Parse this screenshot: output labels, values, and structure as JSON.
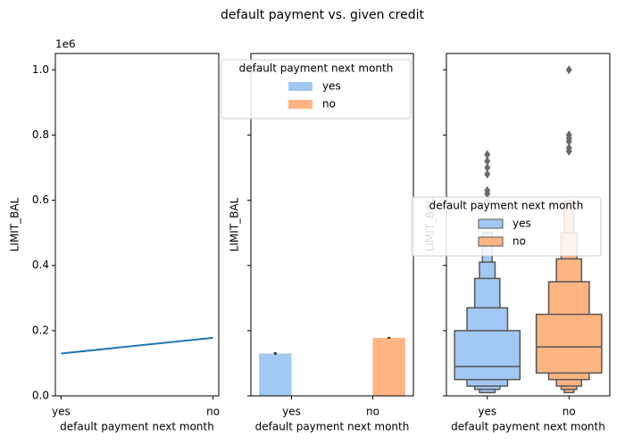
{
  "title": "default payment vs. given credit",
  "chart_data": [
    {
      "type": "line",
      "categories": [
        "yes",
        "no"
      ],
      "values": [
        130000,
        178000
      ],
      "color": "#1f77b4",
      "xlabel": "default payment next month",
      "ylabel": "LIMIT_BAL",
      "y_offset_label": "1e6",
      "ylim": [
        0,
        1050000
      ],
      "yticks": [
        {
          "value": 0,
          "label": "0.0"
        },
        {
          "value": 200000,
          "label": "0.2"
        },
        {
          "value": 400000,
          "label": "0.4"
        },
        {
          "value": 600000,
          "label": "0.6"
        },
        {
          "value": 800000,
          "label": "0.8"
        },
        {
          "value": 1000000,
          "label": "1.0"
        }
      ]
    },
    {
      "type": "bar",
      "categories": [
        "yes",
        "no"
      ],
      "xlabel": "default payment next month",
      "ylabel": "LIMIT_BAL",
      "ylim": [
        0,
        1050000
      ],
      "legend": "upper center",
      "legend_title": "default payment next month",
      "series": [
        {
          "name": "yes",
          "color": "#a1c9f4",
          "values": [
            130000,
            null
          ],
          "errors": [
            4000,
            null
          ]
        },
        {
          "name": "no",
          "color": "#ffb482",
          "values": [
            null,
            178000
          ],
          "errors": [
            null,
            3000
          ]
        }
      ]
    },
    {
      "type": "boxen",
      "categories": [
        "yes",
        "no"
      ],
      "xlabel": "default payment next month",
      "ylabel": "LIMIT_BAL",
      "ylim": [
        0,
        1050000
      ],
      "legend": "center right",
      "legend_title": "default payment next month",
      "series": [
        {
          "name": "yes",
          "color": "#a1c9f4",
          "median": 90000,
          "levels": [
            [
              50000,
              200000
            ],
            [
              30000,
              270000
            ],
            [
              20000,
              360000
            ],
            [
              10000,
              410000
            ],
            [
              10000,
              500000
            ]
          ],
          "outliers": [
            740000,
            720000,
            700000,
            680000,
            630000,
            620000,
            600000
          ]
        },
        {
          "name": "no",
          "color": "#ffb482",
          "median": 150000,
          "levels": [
            [
              70000,
              250000
            ],
            [
              50000,
              350000
            ],
            [
              30000,
              420000
            ],
            [
              20000,
              500000
            ],
            [
              10000,
              600000
            ]
          ],
          "outliers": [
            1000000,
            800000,
            790000,
            780000,
            760000,
            750000
          ]
        }
      ]
    }
  ]
}
